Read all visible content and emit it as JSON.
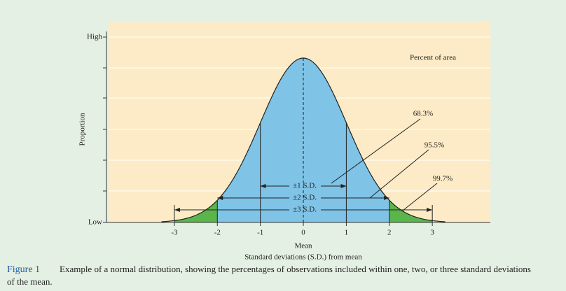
{
  "chart_data": {
    "type": "normal",
    "y_label": "Proportion",
    "y_high": "High",
    "y_low": "Low",
    "xticks": [
      -3,
      -2,
      -1,
      0,
      1,
      2,
      3
    ],
    "xlim": [
      -4.53,
      4.35
    ],
    "mean_label": "Mean",
    "x_label": "Standard deviations (S.D.) from mean",
    "legend_title": "Percent of area",
    "sd_labels": [
      "±1 S.D.",
      "±2 S.D.",
      "±3 S.D."
    ],
    "values": [
      68.3,
      95.5,
      99.7
    ],
    "value_labels": [
      "68.3%",
      "95.5%",
      "99.7%"
    ],
    "colors": {
      "center": "#7fc3e6",
      "tail": "#5ab54a"
    }
  },
  "caption": {
    "label": "Figure 1",
    "text": "Example of a normal distribution, showing the percentages of observations included within one, two, or three standard deviations",
    "text_cont": "of the mean."
  }
}
